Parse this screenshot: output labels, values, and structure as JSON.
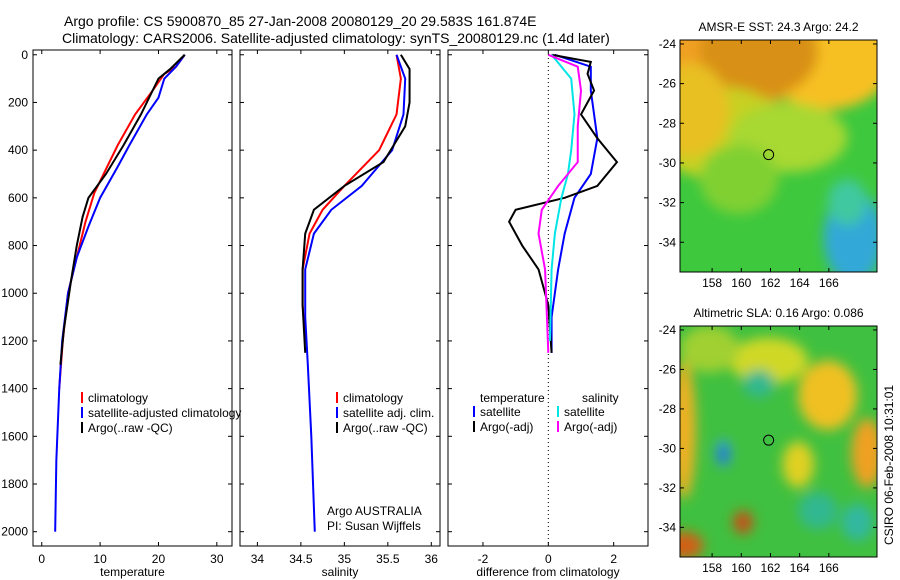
{
  "title_line1": "Argo profile: CS 5900870_85 27-Jan-2008 20080129_20 29.583S 161.874E",
  "title_line2": "Climatology: CARS2006. Satellite-adjusted climatology: synTS_20080129.nc (1.4d later)",
  "side_stamp": "CSIRO 06-Feb-2008 10:31:01",
  "colors": {
    "red": "#ff0000",
    "blue": "#0000ff",
    "black": "#000000",
    "cyan": "#00e5e5",
    "magenta": "#ff00ff"
  },
  "chart_data": [
    {
      "type": "line",
      "name": "temperature",
      "xlabel": "temperature",
      "ylabel": "",
      "xlim": [
        -1.5,
        32.6
      ],
      "ylim": [
        -20,
        2060
      ],
      "y_reversed": true,
      "xticks": [
        "0",
        "10",
        "20",
        "30"
      ],
      "xtick_values": [
        0,
        10,
        20,
        30
      ],
      "yticks": [
        "0",
        "200",
        "400",
        "600",
        "800",
        "1000",
        "1200",
        "1400",
        "1600",
        "1800",
        "2000"
      ],
      "ytick_values": [
        0,
        200,
        400,
        600,
        800,
        1000,
        1200,
        1400,
        1600,
        1800,
        2000
      ],
      "legend": [
        {
          "label": "climatology",
          "color": "#ff0000"
        },
        {
          "label": "satellite-adjusted climatology",
          "color": "#0000ff"
        },
        {
          "label": "Argo(..raw -QC)",
          "color": "#000000"
        }
      ],
      "series": [
        {
          "name": "climatology",
          "color": "#ff0000",
          "points": [
            [
              24.5,
              0
            ],
            [
              23,
              50
            ],
            [
              21,
              80
            ],
            [
              19,
              150
            ],
            [
              16,
              250
            ],
            [
              13,
              380
            ],
            [
              11,
              480
            ],
            [
              9,
              580
            ],
            [
              7.5,
              700
            ],
            [
              6,
              850
            ],
            [
              4.5,
              1000
            ],
            [
              3.6,
              1200
            ],
            [
              3,
              1400
            ]
          ]
        },
        {
          "name": "satellite-adjusted climatology",
          "color": "#0000ff",
          "points": [
            [
              24.5,
              0
            ],
            [
              23,
              50
            ],
            [
              21,
              100
            ],
            [
              20,
              180
            ],
            [
              18,
              250
            ],
            [
              15,
              380
            ],
            [
              13,
              470
            ],
            [
              10,
              600
            ],
            [
              8,
              720
            ],
            [
              6,
              850
            ],
            [
              4.5,
              1000
            ],
            [
              3.5,
              1200
            ],
            [
              3,
              1400
            ],
            [
              2.5,
              1700
            ],
            [
              2.3,
              2000
            ]
          ]
        },
        {
          "name": "Argo(..raw -QC)",
          "color": "#000000",
          "points": [
            [
              24.5,
              0
            ],
            [
              22,
              60
            ],
            [
              20,
              100
            ],
            [
              17,
              250
            ],
            [
              14,
              380
            ],
            [
              11,
              500
            ],
            [
              8,
              600
            ],
            [
              7,
              680
            ],
            [
              6,
              800
            ],
            [
              5,
              950
            ],
            [
              3.8,
              1150
            ],
            [
              3.2,
              1300
            ]
          ]
        }
      ]
    },
    {
      "type": "line",
      "name": "salinity",
      "xlabel": "salinity",
      "xlim": [
        33.8,
        36.1
      ],
      "ylim": [
        -20,
        2060
      ],
      "y_reversed": true,
      "xticks": [
        "34",
        "34.5",
        "35",
        "35.5",
        "36"
      ],
      "xtick_values": [
        34,
        34.5,
        35,
        35.5,
        36
      ],
      "legend": [
        {
          "label": "climatology",
          "color": "#ff0000"
        },
        {
          "label": "satellite adj. clim.",
          "color": "#0000ff"
        },
        {
          "label": "Argo(..raw -QC)",
          "color": "#000000"
        }
      ],
      "annotation": [
        "Argo AUSTRALIA",
        "PI: Susan Wijffels"
      ],
      "series": [
        {
          "name": "climatology",
          "color": "#ff0000",
          "points": [
            [
              35.6,
              0
            ],
            [
              35.65,
              100
            ],
            [
              35.6,
              250
            ],
            [
              35.4,
              400
            ],
            [
              35.0,
              550
            ],
            [
              34.75,
              650
            ],
            [
              34.6,
              750
            ],
            [
              34.52,
              900
            ],
            [
              34.52,
              1050
            ],
            [
              34.55,
              1200
            ]
          ]
        },
        {
          "name": "satellite adj. clim.",
          "color": "#0000ff",
          "points": [
            [
              35.6,
              0
            ],
            [
              35.7,
              100
            ],
            [
              35.68,
              250
            ],
            [
              35.55,
              400
            ],
            [
              35.2,
              550
            ],
            [
              34.85,
              650
            ],
            [
              34.65,
              750
            ],
            [
              34.55,
              900
            ],
            [
              34.55,
              1100
            ],
            [
              34.58,
              1300
            ],
            [
              34.62,
              1600
            ],
            [
              34.66,
              2000
            ]
          ]
        },
        {
          "name": "Argo(..raw -QC)",
          "color": "#000000",
          "points": [
            [
              35.65,
              0
            ],
            [
              35.75,
              60
            ],
            [
              35.75,
              200
            ],
            [
              35.7,
              300
            ],
            [
              35.45,
              450
            ],
            [
              35.0,
              550
            ],
            [
              34.65,
              650
            ],
            [
              34.55,
              750
            ],
            [
              34.52,
              900
            ],
            [
              34.52,
              1050
            ],
            [
              34.55,
              1250
            ]
          ]
        }
      ]
    },
    {
      "type": "line",
      "name": "difference",
      "xlabel": "difference from climatology",
      "xlim": [
        -3.07,
        3.05
      ],
      "ylim": [
        -20,
        2060
      ],
      "y_reversed": true,
      "xticks": [
        "-2",
        "0",
        "2"
      ],
      "xtick_values": [
        -2,
        0,
        2
      ],
      "legend_headers": [
        "temperature",
        "salinity"
      ],
      "legend": [
        {
          "label": "satellite",
          "color": "#0000ff",
          "group": "temperature"
        },
        {
          "label": "Argo(-adj)",
          "color": "#000000",
          "group": "temperature"
        },
        {
          "label": "satellite",
          "color": "#00e5e5",
          "group": "salinity"
        },
        {
          "label": "Argo(-adj)",
          "color": "#ff00ff",
          "group": "salinity"
        }
      ],
      "series": [
        {
          "name": "temperature satellite",
          "color": "#0000ff",
          "points": [
            [
              0.2,
              0
            ],
            [
              1.3,
              50
            ],
            [
              1.3,
              150
            ],
            [
              1.5,
              350
            ],
            [
              1.3,
              500
            ],
            [
              0.8,
              600
            ],
            [
              0.5,
              750
            ],
            [
              0.3,
              900
            ],
            [
              0.1,
              1100
            ],
            [
              0.1,
              1250
            ]
          ]
        },
        {
          "name": "temperature Argo(-adj)",
          "color": "#000000",
          "points": [
            [
              0.1,
              0
            ],
            [
              1.3,
              30
            ],
            [
              1.2,
              80
            ],
            [
              1.4,
              150
            ],
            [
              1.0,
              250
            ],
            [
              1.5,
              350
            ],
            [
              2.1,
              450
            ],
            [
              1.5,
              550
            ],
            [
              0.5,
              600
            ],
            [
              -1.0,
              650
            ],
            [
              -1.2,
              700
            ],
            [
              -0.8,
              800
            ],
            [
              -0.3,
              900
            ],
            [
              0,
              1050
            ],
            [
              0.1,
              1250
            ]
          ]
        },
        {
          "name": "salinity satellite",
          "color": "#00e5e5",
          "points": [
            [
              0.1,
              0
            ],
            [
              0.7,
              100
            ],
            [
              0.8,
              250
            ],
            [
              0.7,
              400
            ],
            [
              0.6,
              500
            ],
            [
              0.4,
              600
            ],
            [
              0.2,
              750
            ],
            [
              0.1,
              900
            ],
            [
              0.05,
              1200
            ]
          ]
        },
        {
          "name": "salinity Argo(-adj)",
          "color": "#ff00ff",
          "points": [
            [
              0,
              0
            ],
            [
              0.9,
              50
            ],
            [
              1.0,
              150
            ],
            [
              0.9,
              300
            ],
            [
              0.9,
              450
            ],
            [
              0.3,
              550
            ],
            [
              -0.2,
              650
            ],
            [
              -0.3,
              750
            ],
            [
              -0.1,
              900
            ],
            [
              0,
              1250
            ]
          ]
        }
      ]
    },
    {
      "type": "heatmap",
      "name": "sst-map",
      "title": "AMSR-E SST: 24.3 Argo: 24.2",
      "xlim": [
        155.8,
        169.3
      ],
      "ylim": [
        -35.5,
        -23.8
      ],
      "xticks": [
        "158",
        "160",
        "162",
        "164",
        "166"
      ],
      "xtick_values": [
        158,
        160,
        162,
        164,
        166
      ],
      "yticks": [
        "-24",
        "-26",
        "-28",
        "-30",
        "-32",
        "-34"
      ],
      "ytick_values": [
        -24,
        -26,
        -28,
        -30,
        -32,
        -34
      ],
      "marker": {
        "lon": 161.874,
        "lat": -29.583
      }
    },
    {
      "type": "heatmap",
      "name": "sla-map",
      "title": "Altimetric SLA: 0.16 Argo: 0.086",
      "xlim": [
        155.8,
        169.3
      ],
      "ylim": [
        -35.5,
        -23.8
      ],
      "xticks": [
        "158",
        "160",
        "162",
        "164",
        "166"
      ],
      "xtick_values": [
        158,
        160,
        162,
        164,
        166
      ],
      "yticks": [
        "-24",
        "-26",
        "-28",
        "-30",
        "-32",
        "-34"
      ],
      "ytick_values": [
        -24,
        -26,
        -28,
        -30,
        -32,
        -34
      ],
      "marker": {
        "lon": 161.874,
        "lat": -29.583
      }
    }
  ]
}
